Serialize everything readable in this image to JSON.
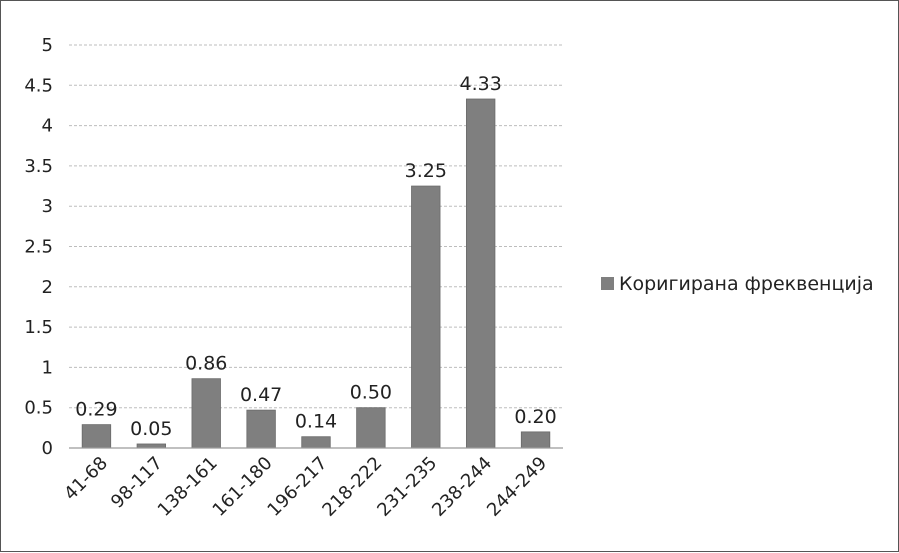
{
  "chart_data": {
    "type": "bar",
    "categories": [
      "41-68",
      "98-117",
      "138-161",
      "161-180",
      "196-217",
      "218-222",
      "231-235",
      "238-244",
      "244-249"
    ],
    "series": [
      {
        "name": "Коригирана фреквенција",
        "values": [
          0.29,
          0.05,
          0.86,
          0.47,
          0.14,
          0.5,
          3.25,
          4.33,
          0.2
        ],
        "labels": [
          "0.29",
          "0.05",
          "0.86",
          "0.47",
          "0.14",
          "0.50",
          "3.25",
          "4.33",
          "0.20"
        ],
        "color": "#7f7f7f"
      }
    ],
    "yticks": [
      "0",
      "0.5",
      "1",
      "1.5",
      "2",
      "2.5",
      "3",
      "3.5",
      "4",
      "4.5",
      "5"
    ],
    "ylim": [
      0,
      5
    ],
    "grid": true,
    "legend": "right"
  }
}
